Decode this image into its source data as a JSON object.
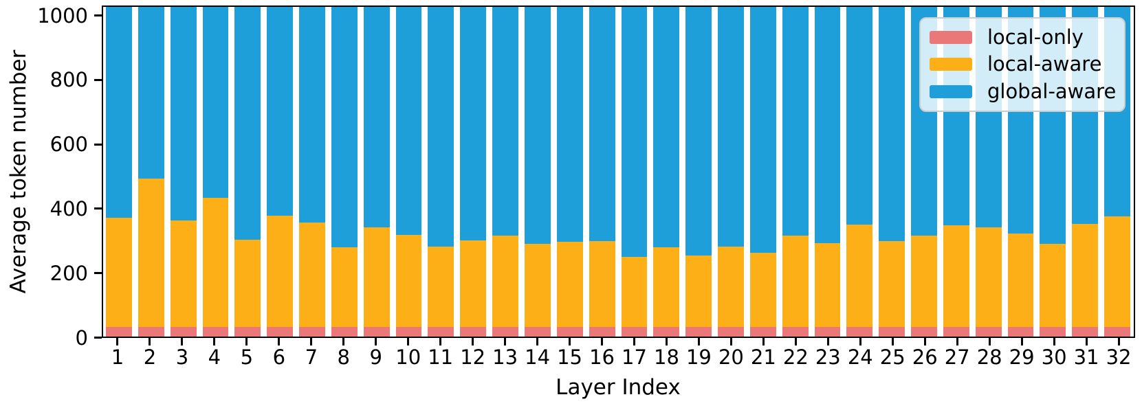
{
  "chart_data": {
    "type": "bar",
    "stacked": true,
    "title": "",
    "xlabel": "Layer Index",
    "ylabel": "Average token number",
    "categories": [
      "1",
      "2",
      "3",
      "4",
      "5",
      "6",
      "7",
      "8",
      "9",
      "10",
      "11",
      "12",
      "13",
      "14",
      "15",
      "16",
      "17",
      "18",
      "19",
      "20",
      "21",
      "22",
      "23",
      "24",
      "25",
      "26",
      "27",
      "28",
      "29",
      "30",
      "31",
      "32"
    ],
    "bar_total": 1024,
    "ylim": [
      0,
      1024
    ],
    "ytick_values": [
      0,
      200,
      400,
      600,
      800,
      1000
    ],
    "ytick_labels": [
      "0",
      "200",
      "400",
      "600",
      "800",
      "1000"
    ],
    "grid": false,
    "legend_position": "upper right",
    "series": [
      {
        "name": "local-only",
        "color": "#ea7878",
        "values": [
          30,
          30,
          30,
          30,
          30,
          30,
          30,
          30,
          30,
          30,
          30,
          30,
          30,
          30,
          30,
          30,
          30,
          30,
          30,
          30,
          30,
          30,
          30,
          30,
          30,
          30,
          30,
          30,
          30,
          30,
          30,
          30
        ]
      },
      {
        "name": "local-aware",
        "color": "#fcaf17",
        "values": [
          340,
          460,
          330,
          400,
          270,
          345,
          325,
          248,
          310,
          285,
          250,
          268,
          283,
          259,
          264,
          266,
          218,
          248,
          221,
          249,
          230,
          283,
          261,
          317,
          266,
          283,
          315,
          310,
          291,
          257,
          319,
          344
        ]
      },
      {
        "name": "global-aware",
        "color": "#1f9fd9",
        "values": [
          654,
          534,
          664,
          594,
          724,
          649,
          669,
          746,
          684,
          709,
          744,
          726,
          711,
          735,
          730,
          728,
          776,
          746,
          773,
          745,
          764,
          711,
          733,
          677,
          728,
          711,
          679,
          684,
          703,
          737,
          675,
          650
        ]
      }
    ],
    "legend": {
      "entries": [
        {
          "label": "local-only",
          "color": "#ea7878"
        },
        {
          "label": "local-aware",
          "color": "#fcaf17"
        },
        {
          "label": "global-aware",
          "color": "#1f9fd9"
        }
      ]
    }
  }
}
